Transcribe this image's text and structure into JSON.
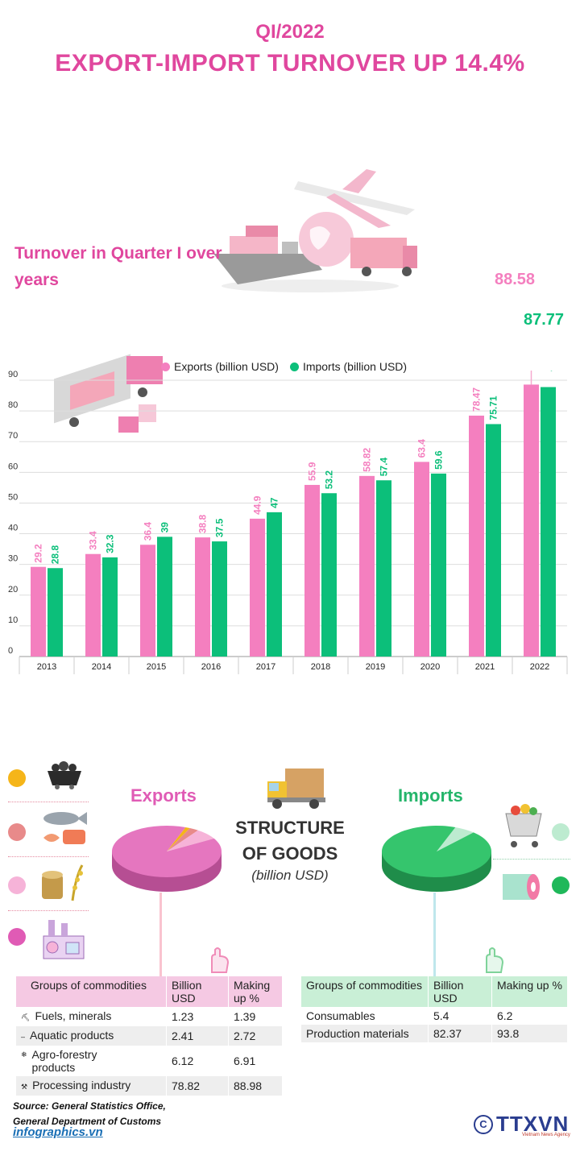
{
  "header": {
    "period": "QI/2022",
    "headline": "EXPORT-IMPORT TURNOVER UP 14.4%"
  },
  "section_title": "Turnover in Quarter I over years",
  "legend": {
    "exports": "Exports (billion USD)",
    "imports": "Imports (billion USD)"
  },
  "colors": {
    "exports": "#f47fbf",
    "imports": "#0cbf7a",
    "accent": "#e0479e"
  },
  "callouts": {
    "exports_2022": "88.58",
    "imports_2022": "87.77"
  },
  "chart_data": {
    "type": "bar",
    "categories": [
      "2013",
      "2014",
      "2015",
      "2016",
      "2017",
      "2018",
      "2019",
      "2020",
      "2021",
      "2022"
    ],
    "series": [
      {
        "name": "Exports (billion USD)",
        "values": [
          29.2,
          33.4,
          36.4,
          38.8,
          44.9,
          55.9,
          58.82,
          63.4,
          78.47,
          88.58
        ]
      },
      {
        "name": "Imports (billion USD)",
        "values": [
          28.8,
          32.3,
          39,
          37.5,
          47,
          53.2,
          57.4,
          59.6,
          75.71,
          87.77
        ]
      }
    ],
    "labels": {
      "exports": [
        "29.2",
        "33.4",
        "36.4",
        "38.8",
        "44.9",
        "55.9",
        "58.82",
        "63.4",
        "78.47",
        ""
      ],
      "imports": [
        "28.8",
        "32.3",
        "39",
        "37.5",
        "47",
        "53.2",
        "57.4",
        "59.6",
        "75.71",
        ""
      ]
    },
    "yticks": [
      "0",
      "10",
      "20",
      "30",
      "40",
      "50",
      "60",
      "70",
      "80",
      "90"
    ],
    "ylim": [
      0,
      90
    ],
    "grid": true
  },
  "structure": {
    "title_line1": "STRUCTURE",
    "title_line2": "OF GOODS",
    "unit": "(billion USD)",
    "exports_label": "Exports",
    "imports_label": "Imports"
  },
  "exports_table": {
    "headers": [
      "Groups of commodities",
      "Billion USD",
      "Making up %"
    ],
    "rows": [
      {
        "group": "Fuels, minerals",
        "value": "1.23",
        "pct": "1.39",
        "icon": "coal-cart-icon"
      },
      {
        "group": "Aquatic products",
        "value": "2.41",
        "pct": "2.72",
        "icon": "fish-icon"
      },
      {
        "group": "Agro-forestry products",
        "value": "6.12",
        "pct": "6.91",
        "icon": "rice-icon"
      },
      {
        "group": "Processing industry",
        "value": "78.82",
        "pct": "88.98",
        "icon": "factory-icon"
      }
    ]
  },
  "imports_table": {
    "headers": [
      "Groups of commodities",
      "Billion USD",
      "Making up %"
    ],
    "rows": [
      {
        "group": "Consumables",
        "value": "5.4",
        "pct": "6.2"
      },
      {
        "group": "Production materials",
        "value": "82.37",
        "pct": "93.8"
      }
    ]
  },
  "footer": {
    "source_line1": "Source: General Statistics Office,",
    "source_line2": "General Department of Customs",
    "site": "infographics.vn",
    "logo": "TTXVN",
    "logo_sub": "Vietnam News Agency"
  }
}
